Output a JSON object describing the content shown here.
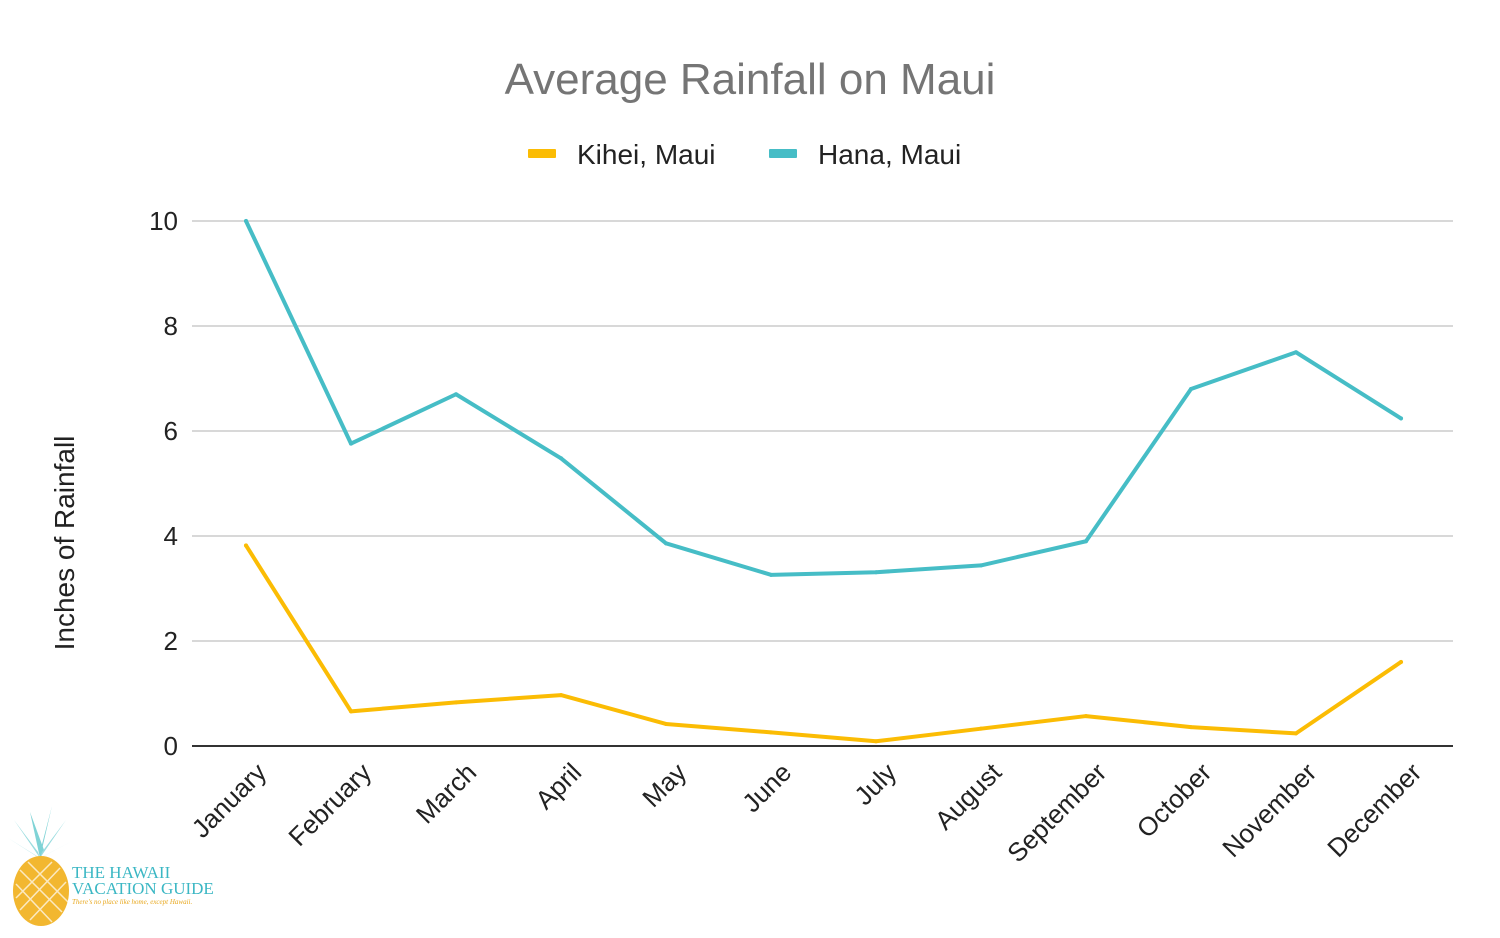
{
  "chart_data": {
    "type": "line",
    "title": "Average Rainfall on Maui",
    "xlabel": "",
    "ylabel": "Inches of Rainfall",
    "categories": [
      "January",
      "February",
      "March",
      "April",
      "May",
      "June",
      "July",
      "August",
      "September",
      "October",
      "November",
      "December"
    ],
    "ylim": [
      0,
      10
    ],
    "yticks": [
      0,
      2,
      4,
      6,
      8,
      10
    ],
    "grid": true,
    "legend_position": "top",
    "series": [
      {
        "name": "Kihei, Maui",
        "color": "#fbbc04",
        "values": [
          3.82,
          0.66,
          0.83,
          0.97,
          0.42,
          0.26,
          0.09,
          0.33,
          0.57,
          0.36,
          0.24,
          1.6
        ]
      },
      {
        "name": "Hana, Maui",
        "color": "#46bdc6",
        "values": [
          10.0,
          5.76,
          6.7,
          5.48,
          3.86,
          3.26,
          3.31,
          3.44,
          3.9,
          6.8,
          7.5,
          6.24
        ]
      }
    ]
  },
  "logo": {
    "line1": "THE HAWAII",
    "line2": "VACATION GUIDE",
    "tagline": "There's no place like home, except Hawaii."
  }
}
